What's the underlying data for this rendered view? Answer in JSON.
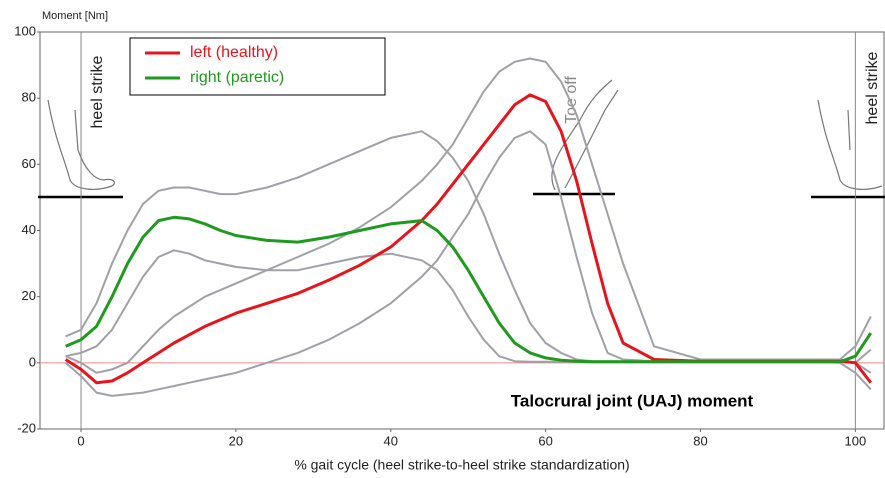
{
  "chart_data": {
    "type": "line",
    "y_label": "Moment [Nm]",
    "x_label": "% gait cycle (heel strike-to-heel strike standardization)",
    "annotation": "Talocrural joint (UAJ) moment",
    "events": [
      "heel strike",
      "Toe off",
      "heel strike"
    ],
    "x": [
      -2,
      0,
      2,
      4,
      6,
      8,
      10,
      12,
      14,
      16,
      18,
      20,
      24,
      28,
      32,
      36,
      40,
      44,
      46,
      48,
      50,
      52,
      54,
      56,
      58,
      60,
      62,
      64,
      66,
      68,
      70,
      74,
      80,
      90,
      98,
      100,
      102
    ],
    "series": [
      {
        "color": "#a0a0a8",
        "values": [
          2,
          0,
          -3,
          -2,
          0,
          5,
          10,
          14,
          17,
          20,
          22,
          24,
          28,
          32,
          36,
          41,
          47,
          55,
          60,
          66,
          74,
          82,
          88,
          91,
          92,
          91,
          85,
          75,
          60,
          45,
          30,
          5,
          1,
          1,
          1,
          0,
          -3
        ]
      },
      {
        "color": "#a0a0a8",
        "values": [
          0,
          -4,
          -9,
          -10,
          -9.5,
          -9,
          -8,
          -7,
          -6,
          -5,
          -4,
          -3,
          0,
          3,
          7,
          12,
          18,
          26,
          31,
          38,
          45,
          54,
          62,
          68,
          70,
          66,
          50,
          32,
          15,
          3,
          1,
          0.5,
          0.5,
          0.5,
          0,
          -3,
          -8
        ]
      },
      {
        "color": "#a0a0a8",
        "values": [
          8,
          10,
          18,
          30,
          40,
          48,
          52,
          53,
          53,
          52,
          51,
          51,
          53,
          56,
          60,
          64,
          68,
          70,
          67,
          62,
          55,
          45,
          33,
          22,
          12,
          6,
          3,
          1,
          0.5,
          0.5,
          0.5,
          0.5,
          0.5,
          0.5,
          1,
          5,
          14
        ]
      },
      {
        "color": "#a0a0a8",
        "values": [
          2,
          3,
          5,
          10,
          18,
          26,
          32,
          34,
          33,
          31,
          30,
          29,
          28,
          28,
          30,
          32,
          33,
          31,
          28,
          22,
          14,
          7,
          2,
          0.5,
          0.3,
          0.3,
          0.3,
          0.3,
          0.3,
          0.3,
          0.3,
          0.3,
          0.3,
          0.3,
          0.3,
          0,
          4
        ]
      },
      {
        "name": "left (healthy)",
        "color": "#e8141c",
        "values": [
          1,
          -2,
          -6,
          -5.5,
          -3,
          0,
          3,
          6,
          8.5,
          11,
          13,
          15,
          18,
          21,
          25,
          29.5,
          35,
          43,
          48,
          54,
          60,
          66,
          72,
          78,
          81,
          79,
          70,
          55,
          36,
          18,
          6,
          1,
          0.5,
          0.5,
          0.5,
          0,
          -6
        ]
      },
      {
        "name": "right (paretic)",
        "color": "#1e9a1e",
        "values": [
          5,
          7,
          11,
          20,
          30,
          38,
          43,
          44,
          43.5,
          42,
          40,
          38.5,
          37,
          36.5,
          38,
          40,
          42,
          43,
          40,
          35,
          28,
          20,
          12,
          6,
          3,
          1.5,
          0.8,
          0.5,
          0.3,
          0.3,
          0.3,
          0.3,
          0.3,
          0.3,
          0.3,
          2,
          9
        ]
      }
    ],
    "xlim": [
      -5.3,
      103.7
    ],
    "ylim": [
      -20,
      100
    ],
    "xticks": [
      0,
      20,
      40,
      60,
      80,
      100
    ],
    "yticks": [
      -20,
      0,
      20,
      40,
      60,
      80,
      100
    ]
  }
}
